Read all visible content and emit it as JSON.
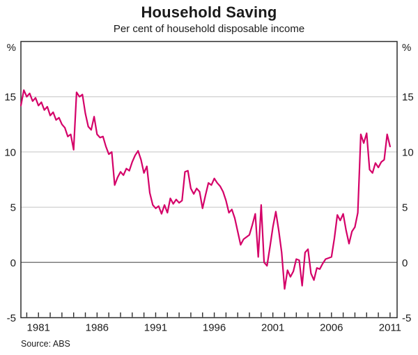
{
  "page": {
    "title": "Household Saving",
    "subtitle": "Per cent of household disposable income",
    "source": "Source: ABS"
  },
  "chart_data": {
    "type": "line",
    "title": "Household Saving",
    "subtitle": "Per cent of household disposable income",
    "unit_label": "%",
    "xlim": [
      1979.5,
      2011.6
    ],
    "ylim": [
      -5,
      20
    ],
    "yticks": [
      -5,
      0,
      5,
      10,
      15
    ],
    "x_tick_years": {
      "from": 1980,
      "to": 2011,
      "every": 1
    },
    "x_label_years": [
      1981,
      1986,
      1991,
      1996,
      2001,
      2006,
      2011
    ],
    "grid": "horizontal",
    "zero_line": true,
    "legend": "none",
    "source": "Source: ABS",
    "series": [
      {
        "name": "Household saving ratio (per cent of household disposable income)",
        "color": "#d40068",
        "x_start": 1979.5,
        "x_step": 0.25,
        "values": [
          14.2,
          15.6,
          15.0,
          15.3,
          14.6,
          14.9,
          14.2,
          14.5,
          13.8,
          14.1,
          13.3,
          13.6,
          12.9,
          13.1,
          12.5,
          12.2,
          11.4,
          11.6,
          10.2,
          15.4,
          15.0,
          15.2,
          13.5,
          12.3,
          12.0,
          13.2,
          11.6,
          11.3,
          11.4,
          10.5,
          9.8,
          10.0,
          7.0,
          7.7,
          8.2,
          7.9,
          8.5,
          8.3,
          9.1,
          9.7,
          10.1,
          9.3,
          8.1,
          8.7,
          6.3,
          5.2,
          4.9,
          5.1,
          4.4,
          5.2,
          4.5,
          5.8,
          5.3,
          5.7,
          5.4,
          5.6,
          8.2,
          8.3,
          6.7,
          6.2,
          6.7,
          6.4,
          4.9,
          6.1,
          7.2,
          7.0,
          7.6,
          7.2,
          6.9,
          6.4,
          5.6,
          4.5,
          4.8,
          4.0,
          2.8,
          1.6,
          2.1,
          2.3,
          2.5,
          3.4,
          4.4,
          0.5,
          5.2,
          0.0,
          -0.3,
          1.4,
          3.2,
          4.6,
          2.9,
          0.9,
          -2.4,
          -0.7,
          -1.3,
          -0.8,
          0.3,
          0.2,
          -2.1,
          0.9,
          1.2,
          -1.0,
          -1.6,
          -0.5,
          -0.6,
          -0.1,
          0.3,
          0.4,
          0.5,
          2.2,
          4.3,
          3.8,
          4.4,
          2.9,
          1.7,
          2.8,
          3.2,
          4.5,
          11.6,
          10.8,
          11.7,
          8.4,
          8.1,
          9.0,
          8.6,
          9.1,
          9.3,
          11.6,
          10.5
        ]
      }
    ],
    "style": {
      "grid_color": "#c4c4c4",
      "zero_line_color": "#7d7d7d",
      "frame_color": "#2b2b2b"
    }
  }
}
